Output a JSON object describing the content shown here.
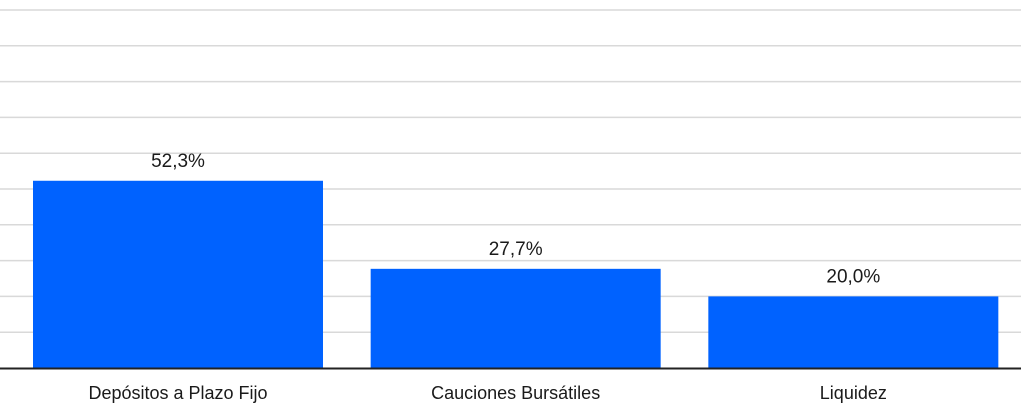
{
  "chart_data": {
    "type": "bar",
    "categories": [
      "Depósitos a Plazo Fijo",
      "Cauciones Bursátiles",
      "Liquidez"
    ],
    "values": [
      52.3,
      27.7,
      20.0
    ],
    "value_labels": [
      "52,3%",
      "27,7%",
      "20,0%"
    ],
    "title": "",
    "xlabel": "",
    "ylabel": "",
    "ylim": [
      0,
      100
    ],
    "grid": true,
    "legend": "none",
    "colors": {
      "bar": "#0062ff",
      "grid": "#d9d9d9",
      "axis": "#222222",
      "text": "#1a1a1a"
    }
  }
}
